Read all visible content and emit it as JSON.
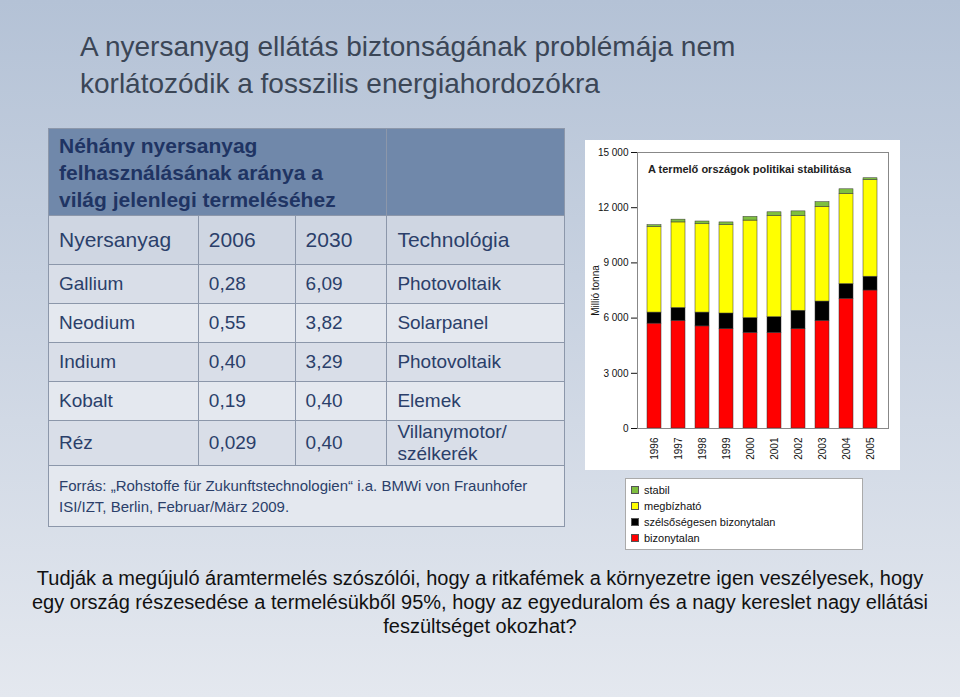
{
  "slide": {
    "title": "A nyersanyag ellátás biztonságának problémája nem korlátozódik a fosszilis energiahordozókra",
    "table": {
      "caption": "Néhány nyersanyag felhasználásának aránya a világ jelenlegi termeléséhez",
      "header": [
        "Nyersanyag",
        "2006",
        "2030",
        "Technológia"
      ],
      "rows": [
        [
          "Gallium",
          "0,28",
          "6,09",
          "Photovoltaik"
        ],
        [
          "Neodium",
          "0,55",
          "3,82",
          "Solarpanel"
        ],
        [
          "Indium",
          "0,40",
          "3,29",
          "Photovoltaik"
        ],
        [
          "Kobalt",
          "0,19",
          "0,40",
          "Elemek"
        ],
        [
          "Réz",
          "0,029",
          "0,40",
          "Villanymotor/ szélkerék"
        ]
      ],
      "source": "Forrás: „Rohstoffe für Zukunftstechnologien“ i.a. BMWi von Fraunhofer ISI/IZT, Berlin, Februar/März 2009."
    },
    "question": "Tudják a megújuló áramtermelés szószólói, hogy a ritkafémek a környezetre igen veszélyesek, hogy egy ország részesedése a termelésükből 95%, hogy az egyeduralom és a nagy kereslet nagy ellátási feszültséget okozhat?"
  },
  "chart_data": {
    "type": "bar",
    "stacked": true,
    "title": "A termelő országok politikai stabilitása",
    "ylabel": "Millió tonna",
    "categories": [
      "1996",
      "1997",
      "1998",
      "1999",
      "2000",
      "2001",
      "2002",
      "2003",
      "2004",
      "2005"
    ],
    "series": [
      {
        "name": "bizonytalan",
        "color": "#ff0000",
        "values": [
          5700,
          5850,
          5550,
          5400,
          5200,
          5200,
          5400,
          5850,
          7050,
          7500
        ]
      },
      {
        "name": "szélsőségesen bizonytalan",
        "color": "#000000",
        "values": [
          600,
          700,
          750,
          850,
          800,
          850,
          1000,
          1050,
          800,
          750
        ]
      },
      {
        "name": "megbízható",
        "color": "#ffff00",
        "values": [
          4650,
          4650,
          4800,
          4800,
          5300,
          5500,
          5150,
          5150,
          4900,
          5250
        ]
      },
      {
        "name": "stabil",
        "color": "#7fbf3f",
        "values": [
          100,
          150,
          150,
          150,
          200,
          200,
          250,
          250,
          250,
          100
        ]
      }
    ],
    "ylim": [
      0,
      15000
    ],
    "yticks": [
      0,
      {
        "value": 3000,
        "label": "3 000"
      },
      {
        "value": 6000,
        "label": "6 000"
      },
      {
        "value": 9000,
        "label": "9 000"
      },
      {
        "value": 12000,
        "label": "12 000"
      },
      {
        "value": 15000,
        "label": "15 000"
      }
    ],
    "grid": false,
    "legend": "bottom"
  }
}
